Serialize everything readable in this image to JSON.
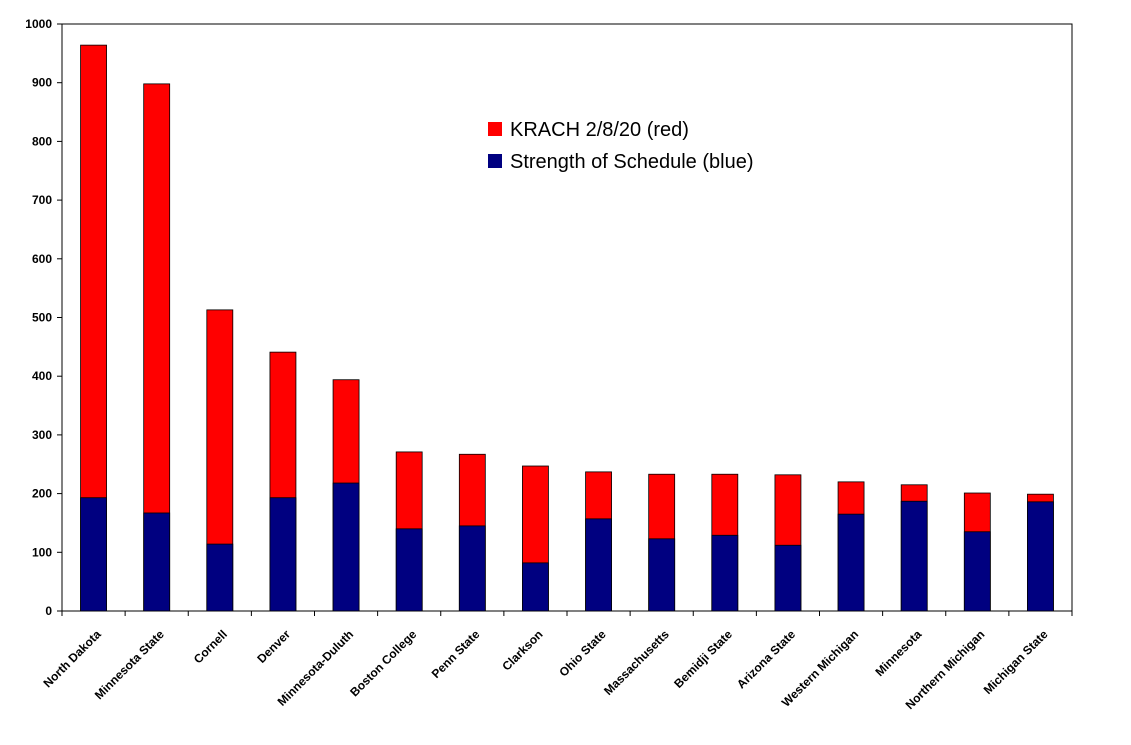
{
  "chart_data": {
    "type": "bar",
    "categories": [
      "North Dakota",
      "Minnesota State",
      "Cornell",
      "Denver",
      "Minnesota-Duluth",
      "Boston College",
      "Penn State",
      "Clarkson",
      "Ohio State",
      "Massachusetts",
      "Bemidji State",
      "Arizona State",
      "Western Michigan",
      "Minnesota",
      "Northern Michigan",
      "Michigan State"
    ],
    "series": [
      {
        "name": "KRACH 2/8/20 (red)",
        "color": "#ff0000",
        "values": [
          964,
          898,
          513,
          441,
          394,
          271,
          267,
          247,
          237,
          233,
          233,
          232,
          220,
          215,
          201,
          199
        ]
      },
      {
        "name": "Strength of Schedule (blue)",
        "color": "#000080",
        "values": [
          193,
          167,
          114,
          193,
          218,
          140,
          145,
          82,
          157,
          123,
          129,
          112,
          165,
          187,
          135,
          186
        ]
      }
    ],
    "ylim": [
      0,
      1000
    ],
    "yticks": [
      0,
      100,
      200,
      300,
      400,
      500,
      600,
      700,
      800,
      900,
      1000
    ],
    "grid": false
  }
}
